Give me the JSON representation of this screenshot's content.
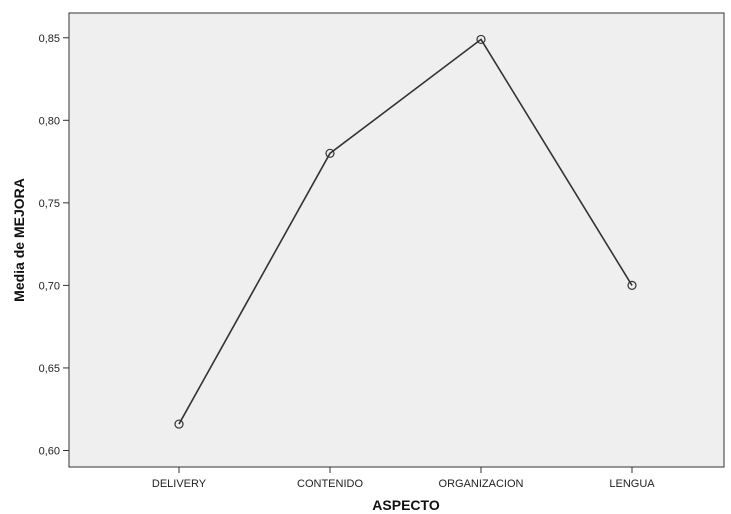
{
  "chart_data": {
    "type": "line",
    "categories": [
      "DELIVERY",
      "CONTENIDO",
      "ORGANIZACION",
      "LENGUA"
    ],
    "values": [
      0.616,
      0.78,
      0.849,
      0.7
    ],
    "xlabel": "ASPECTO",
    "ylabel": "Media de MEJORA",
    "ylim": [
      0.59,
      0.865
    ],
    "yticks": [
      0.6,
      0.65,
      0.7,
      0.75,
      0.8,
      0.85
    ],
    "ytick_labels": [
      "0,60",
      "0,65",
      "0,70",
      "0,75",
      "0,80",
      "0,85"
    ],
    "grid": false,
    "legend": "none",
    "marker": "open-circle",
    "colors": {
      "plot_background": "#efefef",
      "line": "#333333",
      "axis": "#333333"
    }
  }
}
